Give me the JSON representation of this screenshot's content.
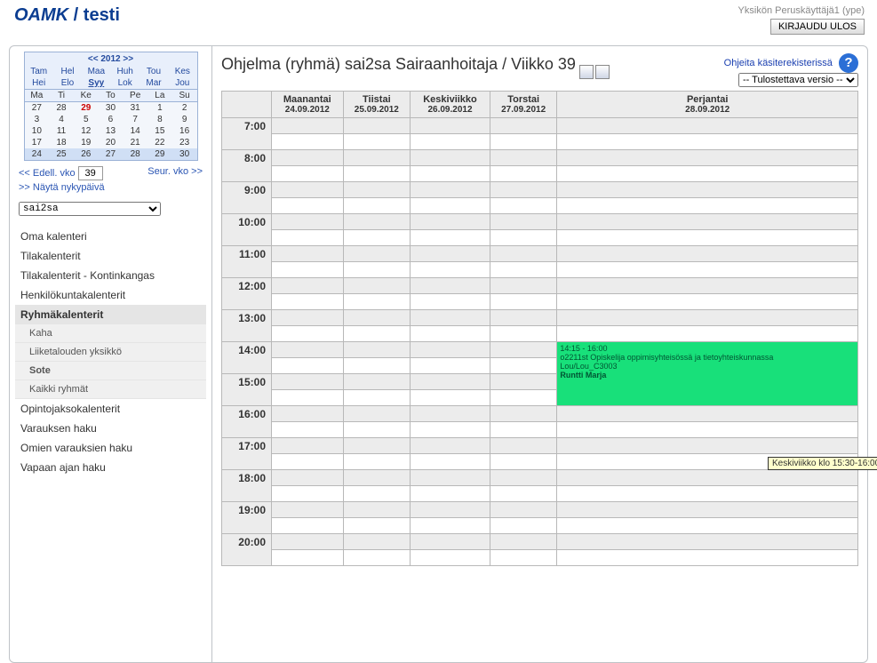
{
  "brand": {
    "main": "OAMK",
    "suffix": " / testi"
  },
  "user": {
    "label": "Yksikön Peruskäyttäjä1 (ype)",
    "logout": "KIRJAUDU ULOS"
  },
  "minical": {
    "year_label": "<< 2012 >>",
    "months_row1": [
      "Tam",
      "Hel",
      "Maa",
      "Huh",
      "Tou",
      "Kes"
    ],
    "months_row2": [
      "Hei",
      "Elo",
      "Syy",
      "Lok",
      "Mar",
      "Jou"
    ],
    "current_month_index": 2,
    "dhead": [
      "Ma",
      "Ti",
      "Ke",
      "To",
      "Pe",
      "La",
      "Su"
    ],
    "weeks": [
      [
        "27",
        "28",
        "29",
        "30",
        "31",
        "1",
        "2"
      ],
      [
        "3",
        "4",
        "5",
        "6",
        "7",
        "8",
        "9"
      ],
      [
        "10",
        "11",
        "12",
        "13",
        "14",
        "15",
        "16"
      ],
      [
        "17",
        "18",
        "19",
        "20",
        "21",
        "22",
        "23"
      ],
      [
        "24",
        "25",
        "26",
        "27",
        "28",
        "29",
        "30"
      ]
    ],
    "today": "29",
    "today_row": 0,
    "current_week_row": 4
  },
  "weeknav": {
    "prev": "<< Edell. vko",
    "week_value": "39",
    "next": "Seur. vko >>",
    "show_today": ">> Näytä nykypäivä"
  },
  "group_select": {
    "value": "sai2sa"
  },
  "nav": {
    "items": [
      {
        "label": "Oma kalenteri",
        "type": "item"
      },
      {
        "label": "Tilakalenterit",
        "type": "item"
      },
      {
        "label": "Tilakalenterit - Kontinkangas",
        "type": "item"
      },
      {
        "label": "Henkilökuntakalenterit",
        "type": "item"
      },
      {
        "label": "Ryhmäkalenterit",
        "type": "active"
      },
      {
        "label": "Kaha",
        "type": "sub"
      },
      {
        "label": "Liiketalouden yksikkö",
        "type": "sub"
      },
      {
        "label": "Sote",
        "type": "substrong"
      },
      {
        "label": "Kaikki ryhmät",
        "type": "sub"
      },
      {
        "label": "Opintojaksokalenterit",
        "type": "item"
      },
      {
        "label": "Varauksen haku",
        "type": "item"
      },
      {
        "label": "Omien varauksien haku",
        "type": "item"
      },
      {
        "label": "Vapaan ajan haku",
        "type": "item"
      }
    ]
  },
  "page": {
    "title": "Ohjelma (ryhmä) sai2sa Sairaanhoitaja / Viikko 39",
    "help_link": "Ohjeita käsiterekisterissä",
    "print_select": "-- Tulostettava versio --"
  },
  "schedule": {
    "days": [
      {
        "name": "Maanantai",
        "date": "24.09.2012"
      },
      {
        "name": "Tiistai",
        "date": "25.09.2012"
      },
      {
        "name": "Keskiviikko",
        "date": "26.09.2012"
      },
      {
        "name": "Torstai",
        "date": "27.09.2012"
      },
      {
        "name": "Perjantai",
        "date": "28.09.2012"
      }
    ],
    "hours": [
      "7:00",
      "8:00",
      "9:00",
      "10:00",
      "11:00",
      "12:00",
      "13:00",
      "14:00",
      "15:00",
      "16:00",
      "17:00",
      "18:00",
      "19:00",
      "20:00"
    ],
    "event": {
      "day_index": 4,
      "hour_label": "14:00",
      "rowspan": 4,
      "time": "14:15 - 16:00",
      "course": "o2211st Opiskelija oppimisyhteisössä ja tietoyhteiskunnassa",
      "room": "Lou/Lou_C3003",
      "teacher": "Runtti Marja",
      "bg": "#18e07a"
    }
  },
  "tooltip": "Keskiviikko klo 15:30-16:00"
}
